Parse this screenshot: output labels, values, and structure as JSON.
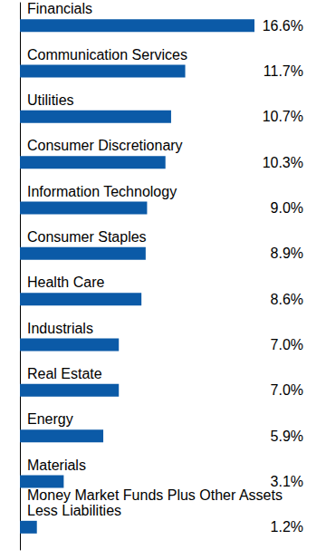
{
  "chart_data": {
    "type": "bar",
    "orientation": "horizontal",
    "categories": [
      "Financials",
      "Communication Services",
      "Utilities",
      "Consumer Discretionary",
      "Information Technology",
      "Consumer Staples",
      "Health Care",
      "Industrials",
      "Real Estate",
      "Energy",
      "Materials",
      "Money Market Funds Plus Other Assets Less Liabilities"
    ],
    "values": [
      16.6,
      11.7,
      10.7,
      10.3,
      9.0,
      8.9,
      8.6,
      7.0,
      7.0,
      5.9,
      3.1,
      1.2
    ],
    "value_labels": [
      "16.6%",
      "11.7%",
      "10.7%",
      "10.3%",
      "9.0%",
      "8.9%",
      "8.6%",
      "7.0%",
      "7.0%",
      "5.9%",
      "3.1%",
      "1.2%"
    ],
    "color": "#0b5aa7",
    "data_labels": true,
    "tick_labels": "y",
    "grid": false
  }
}
